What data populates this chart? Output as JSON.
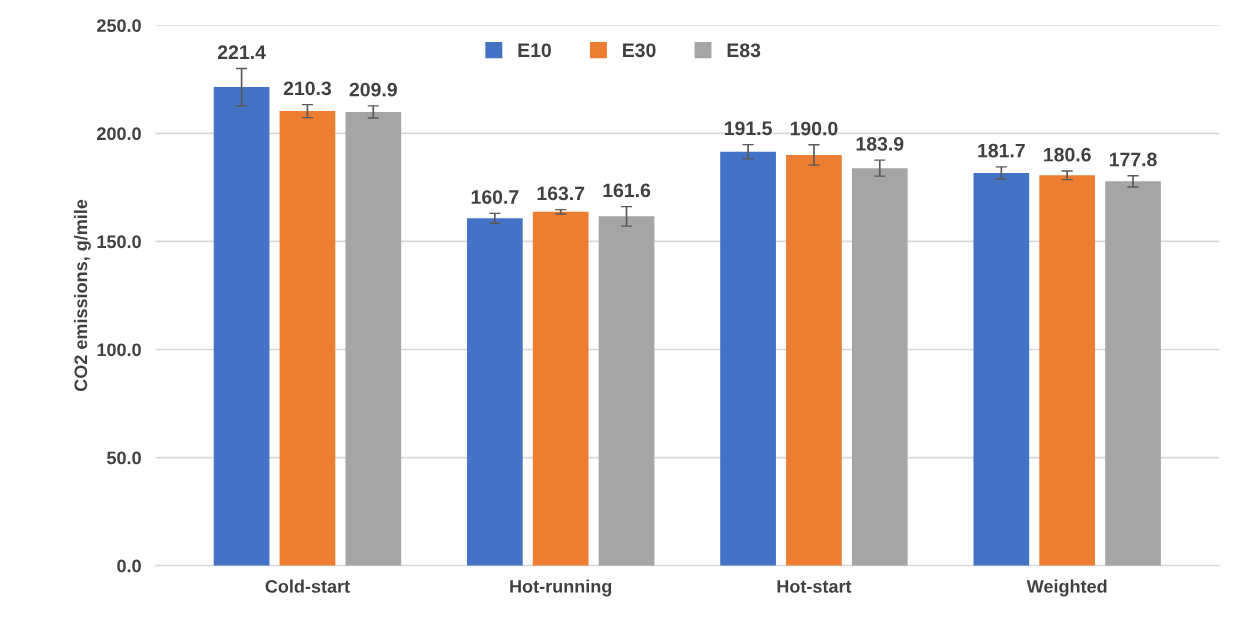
{
  "chart_data": {
    "type": "bar",
    "ylabel": "CO2 emissions, g/mile",
    "categories": [
      "Cold-start",
      "Hot-running",
      "Hot-start",
      "Weighted"
    ],
    "series": [
      {
        "name": "E10",
        "color": "#4472c4",
        "values": [
          221.4,
          160.7,
          191.5,
          181.7
        ],
        "errors": [
          8.6,
          2.3,
          3.3,
          2.8
        ],
        "value_labels": [
          "221.4",
          "160.7",
          "191.5",
          "181.7"
        ]
      },
      {
        "name": "E30",
        "color": "#ed7d31",
        "values": [
          210.3,
          163.7,
          190.0,
          180.6
        ],
        "errors": [
          3.0,
          1.0,
          4.7,
          2.0
        ],
        "value_labels": [
          "210.3",
          "163.7",
          "190.0",
          "180.6"
        ]
      },
      {
        "name": "E83",
        "color": "#a5a5a5",
        "values": [
          209.9,
          161.6,
          183.9,
          177.8
        ],
        "errors": [
          2.8,
          4.5,
          3.7,
          2.6
        ],
        "value_labels": [
          "209.9",
          "161.6",
          "183.9",
          "177.8"
        ]
      }
    ],
    "ylim": [
      0,
      250
    ],
    "yticks": [
      {
        "value": 0,
        "label": "0.0"
      },
      {
        "value": 50,
        "label": "50.0"
      },
      {
        "value": 100,
        "label": "100.0"
      },
      {
        "value": 150,
        "label": "150.0"
      },
      {
        "value": 200,
        "label": "200.0"
      },
      {
        "value": 250,
        "label": "250.0"
      }
    ],
    "grid": "y",
    "legend": "top"
  }
}
